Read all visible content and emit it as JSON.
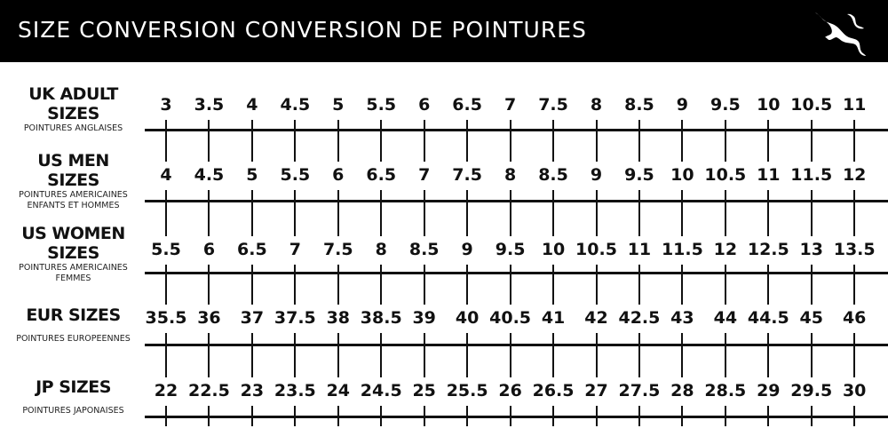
{
  "header": {
    "title": "SIZE CONVERSION CONVERSION DE POINTURES",
    "logo": "PUMA",
    "colors": {
      "background": "#000000",
      "text": "#ffffff"
    }
  },
  "rows": [
    {
      "label": "UK ADULT SIZES",
      "sublabel": [
        "POINTURES ANGLAISES"
      ],
      "values": [
        "3",
        "3.5",
        "4",
        "4.5",
        "5",
        "5.5",
        "6",
        "6.5",
        "7",
        "7.5",
        "8",
        "8.5",
        "9",
        "9.5",
        "10",
        "10.5",
        "11"
      ]
    },
    {
      "label": "US MEN SIZES",
      "sublabel": [
        "POINTURES AMERICAINES",
        "ENFANTS ET HOMMES"
      ],
      "values": [
        "4",
        "4.5",
        "5",
        "5.5",
        "6",
        "6.5",
        "7",
        "7.5",
        "8",
        "8.5",
        "9",
        "9.5",
        "10",
        "10.5",
        "11",
        "11.5",
        "12"
      ]
    },
    {
      "label": "US WOMEN SIZES",
      "sublabel": [
        "POINTURES AMERICAINES",
        "FEMMES"
      ],
      "values": [
        "5.5",
        "6",
        "6.5",
        "7",
        "7.5",
        "8",
        "8.5",
        "9",
        "9.5",
        "10",
        "10.5",
        "11",
        "11.5",
        "12",
        "12.5",
        "13",
        "13.5"
      ]
    },
    {
      "label": "EUR SIZES",
      "sublabel": [
        "POINTURES EUROPEENNES"
      ],
      "values": [
        "35.5",
        "36",
        "37",
        "37.5",
        "38",
        "38.5",
        "39",
        "40",
        "40.5",
        "41",
        "42",
        "42.5",
        "43",
        "44",
        "44.5",
        "45",
        "46"
      ]
    },
    {
      "label": "JP SIZES",
      "sublabel": [
        "POINTURES JAPONAISES"
      ],
      "values": [
        "22",
        "22.5",
        "23",
        "23.5",
        "24",
        "24.5",
        "25",
        "25.5",
        "26",
        "26.5",
        "27",
        "27.5",
        "28",
        "28.5",
        "29",
        "29.5",
        "30"
      ]
    }
  ]
}
